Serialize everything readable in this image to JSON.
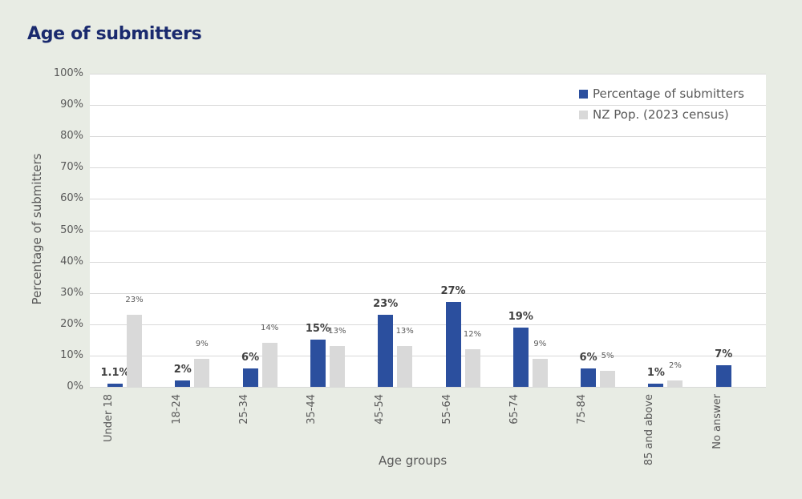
{
  "title": "Age of submitters",
  "colors": {
    "submitters": "#2b4f9e",
    "population": "#d9d9d9",
    "title": "#1a2a6e",
    "background": "#e8ece4"
  },
  "legend": [
    {
      "label": "Percentage of submitters",
      "color": "#2b4f9e"
    },
    {
      "label": "NZ Pop. (2023 census)",
      "color": "#d9d9d9"
    }
  ],
  "axes": {
    "ylabel": "Percentage of submitters",
    "xlabel": "Age groups",
    "yticks": [
      "0%",
      "10%",
      "20%",
      "30%",
      "40%",
      "50%",
      "60%",
      "70%",
      "80%",
      "90%",
      "100%"
    ]
  },
  "chart_data": {
    "type": "bar",
    "title": "Age of submitters",
    "xlabel": "Age groups",
    "ylabel": "Percentage of submitters",
    "ylim": [
      0,
      100
    ],
    "grid": true,
    "legend_position": "top-right",
    "categories": [
      "Under 18",
      "18-24",
      "25-34",
      "35-44",
      "45-54",
      "55-64",
      "65-74",
      "75-84",
      "85 and above",
      "No answer"
    ],
    "series": [
      {
        "name": "Percentage of submitters",
        "values": [
          1.1,
          2,
          6,
          15,
          23,
          27,
          19,
          6,
          1,
          7
        ],
        "labels": [
          "1.1%",
          "2%",
          "6%",
          "15%",
          "23%",
          "27%",
          "19%",
          "6%",
          "1%",
          "7%"
        ]
      },
      {
        "name": "NZ Pop. (2023 census)",
        "values": [
          23,
          9,
          14,
          13,
          13,
          12,
          9,
          5,
          2,
          null
        ],
        "labels": [
          "23%",
          "9%",
          "14%",
          "13%",
          "13%",
          "12%",
          "9%",
          "5%",
          "2%",
          ""
        ]
      }
    ]
  }
}
